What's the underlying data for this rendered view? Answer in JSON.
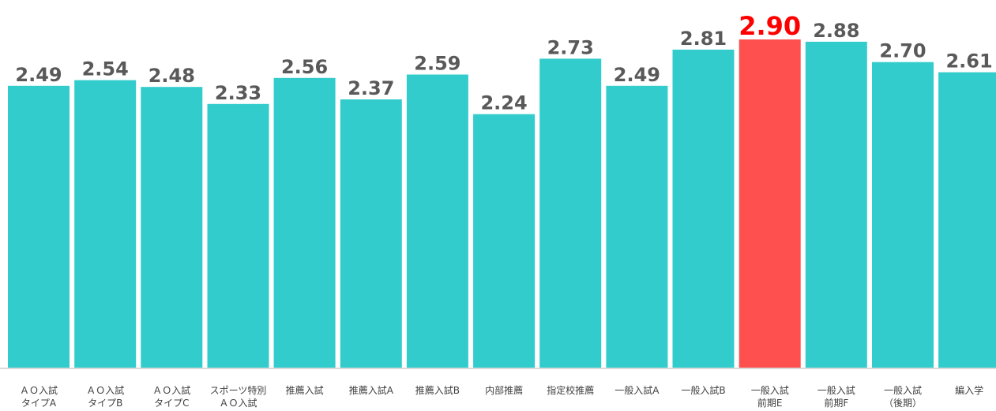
{
  "chart_data": {
    "type": "bar",
    "categories": [
      [
        "ＡＯ入試",
        "タイプA"
      ],
      [
        "ＡＯ入試",
        "タイプB"
      ],
      [
        "ＡＯ入試",
        "タイプC"
      ],
      [
        "スポーツ特別",
        "ＡＯ入試"
      ],
      [
        "推薦入試"
      ],
      [
        "推薦入試A"
      ],
      [
        "推薦入試B"
      ],
      [
        "内部推薦"
      ],
      [
        "指定校推薦"
      ],
      [
        "一般入試A"
      ],
      [
        "一般入試B"
      ],
      [
        "一般入試",
        "前期E"
      ],
      [
        "一般入試",
        "前期F"
      ],
      [
        "一般入試",
        "（後期）"
      ],
      [
        "編入学"
      ]
    ],
    "values": [
      2.49,
      2.54,
      2.48,
      2.33,
      2.56,
      2.37,
      2.59,
      2.24,
      2.73,
      2.49,
      2.81,
      2.9,
      2.88,
      2.7,
      2.61
    ],
    "value_labels": [
      "2.49",
      "2.54",
      "2.48",
      "2.33",
      "2.56",
      "2.37",
      "2.59",
      "2.24",
      "2.73",
      "2.49",
      "2.81",
      "2.90",
      "2.88",
      "2.70",
      "2.61"
    ],
    "highlight_index": 11,
    "ylim": [
      0,
      2.9
    ],
    "grid": false,
    "legend": "none",
    "colors": {
      "bar": "#33CCCC",
      "highlight_bar": "#FF5050",
      "value_label": "#595959",
      "highlight_label": "#FF0000",
      "axis": "#D9D9D9"
    }
  }
}
